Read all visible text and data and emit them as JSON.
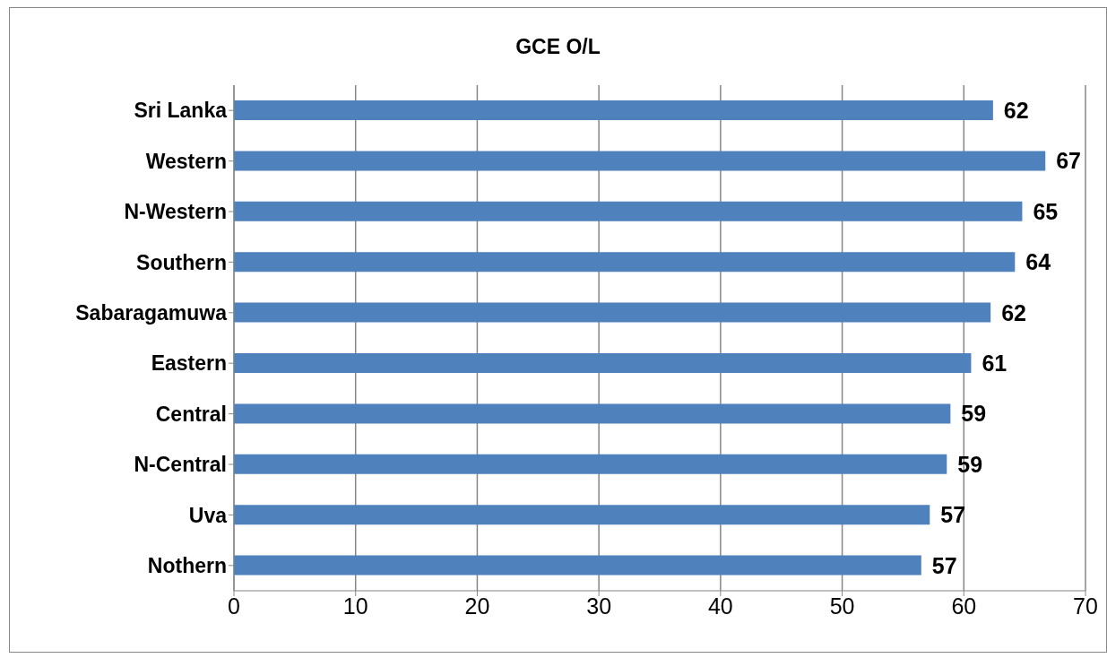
{
  "chart_data": {
    "type": "bar",
    "orientation": "horizontal",
    "title": "GCE O/L",
    "categories": [
      "Sri Lanka",
      "Western",
      "N-Western",
      "Southern",
      "Sabaragamuwa",
      "Eastern",
      "Central",
      "N-Central",
      "Uva",
      "Nothern"
    ],
    "values": [
      62.4,
      66.7,
      64.8,
      64.2,
      62.2,
      60.6,
      58.9,
      58.6,
      57.2,
      56.5
    ],
    "value_labels": [
      "62",
      "67",
      "65",
      "64",
      "62",
      "61",
      "59",
      "59",
      "57",
      "57"
    ],
    "color": "#4f81bd",
    "xlim": [
      0,
      70
    ],
    "xticks": [
      0,
      10,
      20,
      30,
      40,
      50,
      60,
      70
    ],
    "grid": "x"
  }
}
